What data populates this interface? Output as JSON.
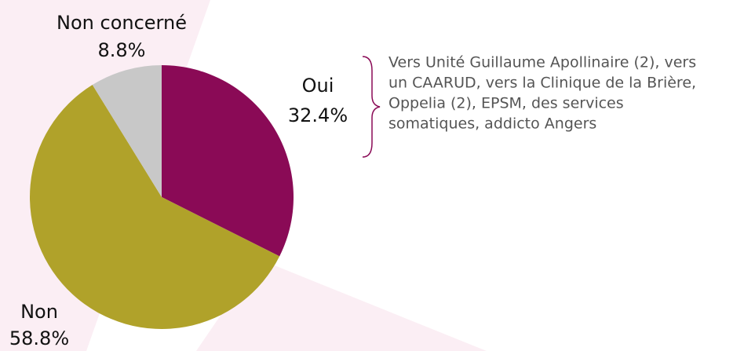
{
  "chart_data": {
    "type": "pie",
    "categories": [
      "Oui",
      "Non",
      "Non concerné"
    ],
    "values": [
      32.4,
      58.8,
      8.8
    ],
    "value_labels": [
      "32.4%",
      "58.8%",
      "8.8%"
    ],
    "colors": [
      "#8a0a56",
      "#b0a22a",
      "#c8c8c8"
    ],
    "annotation": [
      "Vers Unité Guillaume Apollinaire (2), vers",
      "un CAARUD, vers la Clinique de la Brière,",
      "Oppelia (2), EPSM, des services",
      "somatiques, addicto Angers"
    ]
  }
}
